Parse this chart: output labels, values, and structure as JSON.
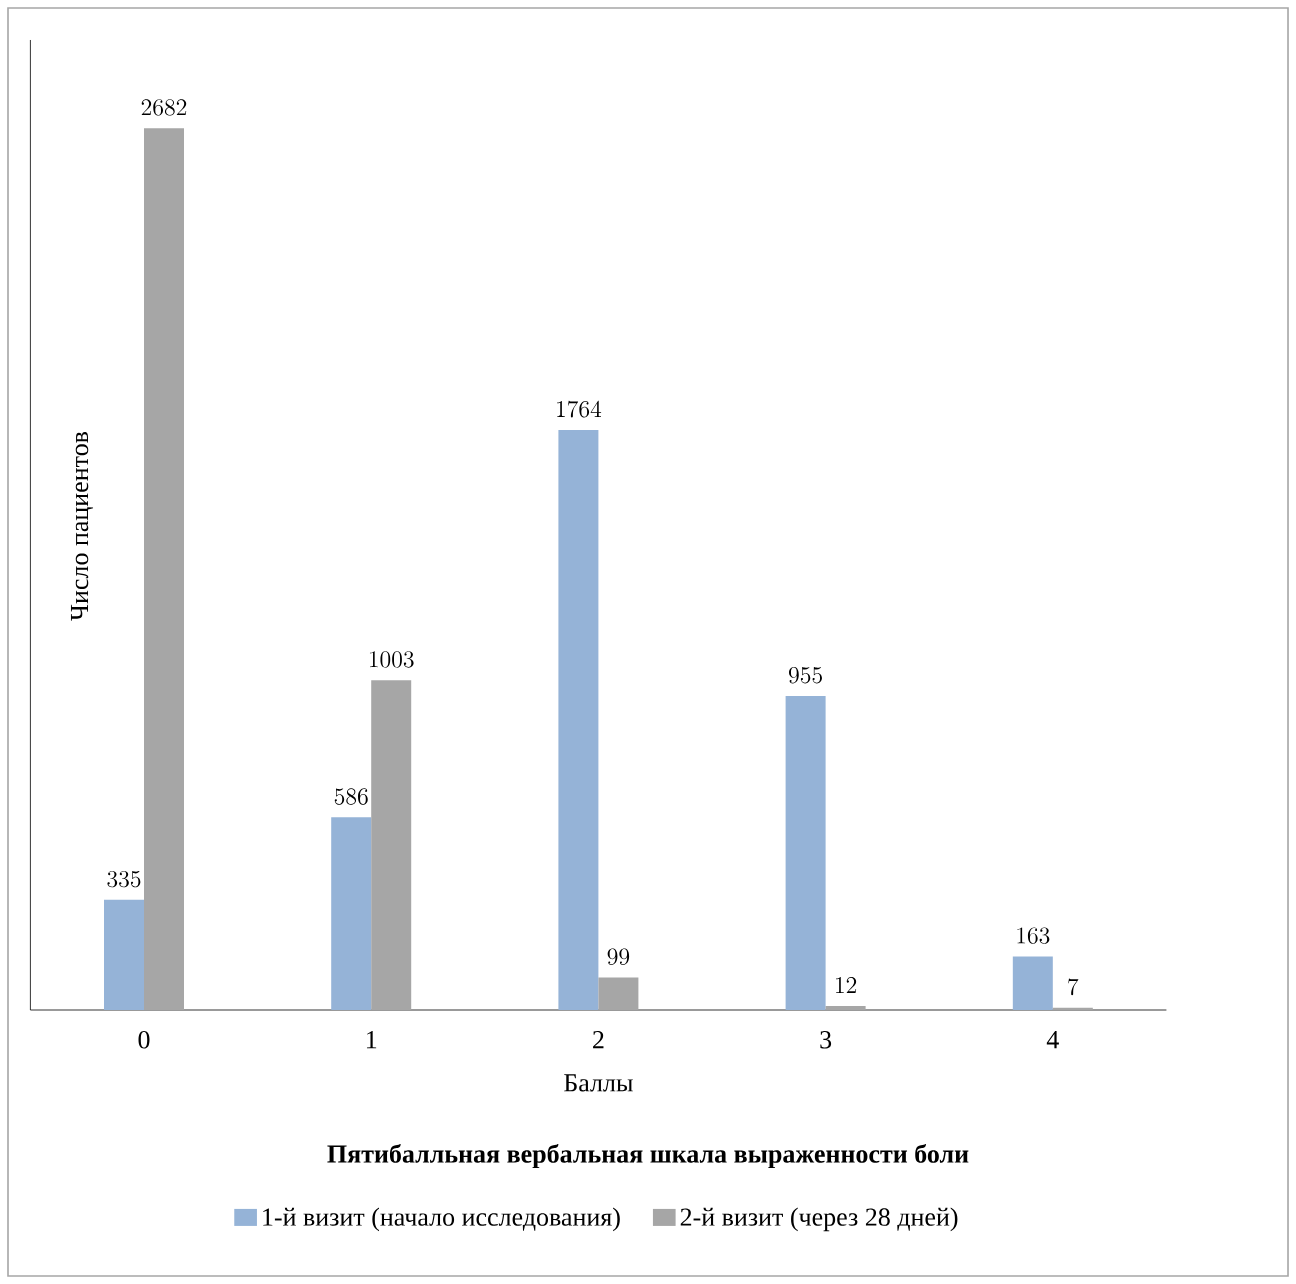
{
  "chart_data": {
    "type": "bar",
    "xlabel": "Баллы",
    "ylabel": "Число пациентов",
    "legend_title": "Пятибалльная вербальная шкала выраженности боли",
    "categories": [
      "0",
      "1",
      "2",
      "3",
      "4"
    ],
    "series": [
      {
        "name": "1-й визит (начало исследования)",
        "color": "#95b3d7",
        "values": [
          335,
          586,
          1764,
          955,
          163
        ]
      },
      {
        "name": "2-й визит (через 28 дней)",
        "color": "#a6a6a6",
        "values": [
          2682,
          1003,
          99,
          12,
          7
        ]
      }
    ],
    "data_labels": true,
    "legend": "bottom",
    "tick_labels": "x",
    "grid": false
  }
}
